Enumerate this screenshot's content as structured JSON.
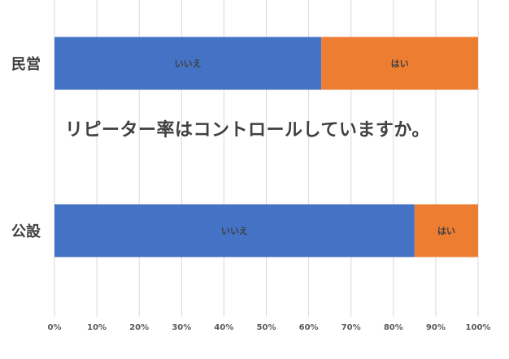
{
  "chart_data": {
    "type": "bar",
    "orientation": "horizontal",
    "stacked": true,
    "percent": true,
    "title": "リピーター率はコントロールしていますか。",
    "categories": [
      "民営",
      "公設"
    ],
    "series": [
      {
        "name": "いいえ",
        "values": [
          63,
          85
        ],
        "color": "#4472C4"
      },
      {
        "name": "はい",
        "values": [
          37,
          15
        ],
        "color": "#ED7D31"
      }
    ],
    "xlim": [
      0,
      100
    ],
    "xticks": [
      "0%",
      "10%",
      "20%",
      "30%",
      "40%",
      "50%",
      "60%",
      "70%",
      "80%",
      "90%",
      "100%"
    ],
    "grid": true
  }
}
